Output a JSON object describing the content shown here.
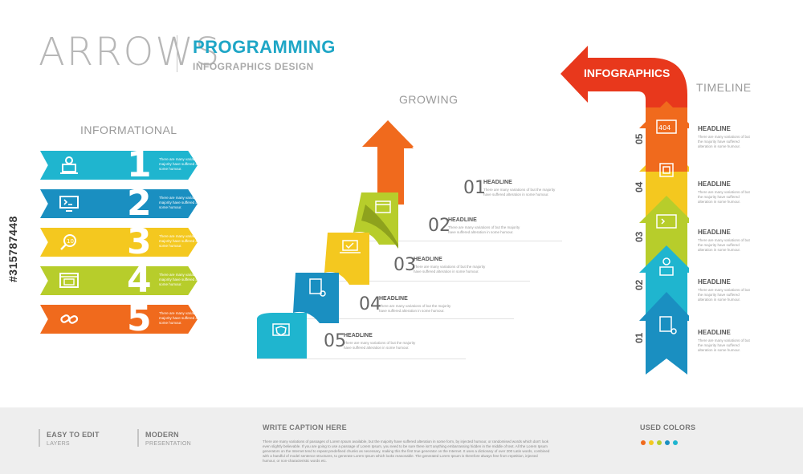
{
  "header": {
    "title": "ARROWS",
    "topic": "PROGRAMMING",
    "subtitle": "INFOGRAPHICS DESIGN"
  },
  "informational": {
    "title": "INFORMATIONAL",
    "items": [
      {
        "num": "1",
        "icon": "chef-laptop-icon",
        "text": "There are many variations of but the majority have suffered alteration in some humour.",
        "color": "#1fb5cf"
      },
      {
        "num": "2",
        "icon": "monitor-terminal-icon",
        "text": "There are many variations of but the majority have suffered alteration in some humour.",
        "color": "#1a8fc1"
      },
      {
        "num": "3",
        "icon": "magnifier-binary-icon",
        "text": "There are many variations of but the majority have suffered alteration in some humour.",
        "color": "#f4c81f"
      },
      {
        "num": "4",
        "icon": "browser-window-icon",
        "text": "There are many variations of but the majority have suffered alteration in some humour.",
        "color": "#b7cd2b"
      },
      {
        "num": "5",
        "icon": "broken-link-icon",
        "text": "There are many variations of but the majority have suffered alteration in some humour.",
        "color": "#f06a1d"
      }
    ]
  },
  "growing": {
    "title": "GROWING",
    "steps": [
      {
        "num": "01",
        "head": "HEADLINE",
        "text": "There are many variations of but the majority have suffered alteration in some humour.",
        "icon": "css-file-icon",
        "color": "#f06a1d"
      },
      {
        "num": "02",
        "head": "HEADLINE",
        "text": "There are many variations of but the majority have suffered alteration in some humour.",
        "icon": "web-layout-icon",
        "color": "#b7cd2b"
      },
      {
        "num": "03",
        "head": "HEADLINE",
        "text": "There are many variations of but the majority have suffered alteration in some humour.",
        "icon": "laptop-check-icon",
        "color": "#f4c81f"
      },
      {
        "num": "04",
        "head": "HEADLINE",
        "text": "There are many variations of but the majority have suffered alteration in some humour.",
        "icon": "code-file-gear-icon",
        "color": "#1a8fc1"
      },
      {
        "num": "05",
        "head": "HEADLINE",
        "text": "There are many variations of but the majority have suffered alteration in some humour.",
        "icon": "shield-monitor-icon",
        "color": "#1fb5cf"
      }
    ]
  },
  "timeline": {
    "title": "TIMELINE",
    "banner": "INFOGRAPHICS",
    "items": [
      {
        "num": "05",
        "head": "HEADLINE",
        "text": "There are many variations of but the majority have suffered alteration in some humour.",
        "icon": "error-404-icon",
        "color": "#f06a1d"
      },
      {
        "num": "04",
        "head": "HEADLINE",
        "text": "There are many variations of but the majority have suffered alteration in some humour.",
        "icon": "chip-icon",
        "color": "#f4c81f"
      },
      {
        "num": "03",
        "head": "HEADLINE",
        "text": "There are many variations of but the majority have suffered alteration in some humour.",
        "icon": "code-window-icon",
        "color": "#b7cd2b"
      },
      {
        "num": "02",
        "head": "HEADLINE",
        "text": "There are many variations of but the majority have suffered alteration in some humour.",
        "icon": "developer-user-icon",
        "color": "#1fb5cf"
      },
      {
        "num": "01",
        "head": "HEADLINE",
        "text": "There are many variations of but the majority have suffered alteration in some humour.",
        "icon": "code-file-icon",
        "color": "#1a8fc1"
      }
    ]
  },
  "footer": {
    "easy_title": "EASY TO EDIT",
    "easy_sub": "LAYERS",
    "modern_title": "MODERN",
    "modern_sub": "PRESENTATION",
    "caption_title": "WRITE CAPTION HERE",
    "caption_text": "There are many variations of passages of Lorem Ipsum available, but the majority have suffered alteration in some form, by injected humour, or randomised words which don't look even slightly believable. If you are going to use a passage of Lorem Ipsum, you need to be sure there isn't anything embarrassing hidden in the middle of text. All the Lorem Ipsum generators on the Internet tend to repeat predefined chunks as necessary, making this the first true generator on the Internet. It uses a dictionary of over 200 Latin words, combined with a handful of model sentence structures, to generate Lorem Ipsum which looks reasonable. The generated Lorem Ipsum is therefore always free from repetition, injected humour, or non-characteristic words etc.",
    "colors_title": "USED COLORS",
    "colors": [
      "#f06a1d",
      "#f4c81f",
      "#b7cd2b",
      "#1a8fc1",
      "#1fb5cf"
    ]
  },
  "stock_id": "#315787448"
}
